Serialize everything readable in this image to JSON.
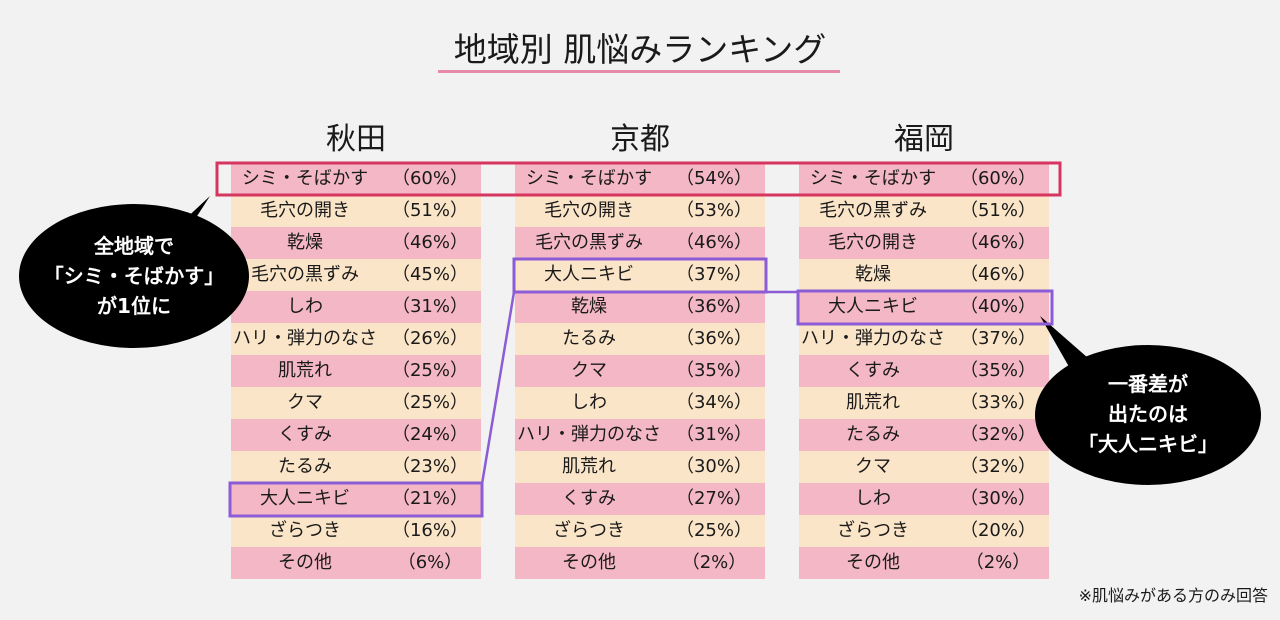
{
  "title": "地域別 肌悩みランキング",
  "note": "※肌悩みがある方のみ回答",
  "callouts": {
    "left": [
      "全地域で",
      "「シミ・そばかす」",
      "が1位に"
    ],
    "right": [
      "一番差が",
      "出たのは",
      "「大人ニキビ」"
    ]
  },
  "colors": {
    "pink_row": "#f4b7c6",
    "cream_row": "#fbe5c8",
    "red_highlight": "#d6355f",
    "purple_highlight": "#8b5cd6",
    "title_underline": "#e58aa8"
  },
  "chart_data": {
    "type": "table",
    "title": "地域別 肌悩みランキング",
    "columns": [
      {
        "region": "秋田",
        "rows": [
          {
            "label": "シミ・そばかす",
            "pct": "（60%）"
          },
          {
            "label": "毛穴の開き",
            "pct": "（51%）"
          },
          {
            "label": "乾燥",
            "pct": "（46%）"
          },
          {
            "label": "毛穴の黒ずみ",
            "pct": "（45%）"
          },
          {
            "label": "しわ",
            "pct": "（31%）"
          },
          {
            "label": "ハリ・弾力のなさ",
            "pct": "（26%）"
          },
          {
            "label": "肌荒れ",
            "pct": "（25%）"
          },
          {
            "label": "クマ",
            "pct": "（25%）"
          },
          {
            "label": "くすみ",
            "pct": "（24%）"
          },
          {
            "label": "たるみ",
            "pct": "（23%）"
          },
          {
            "label": "大人ニキビ",
            "pct": "（21%）"
          },
          {
            "label": "ざらつき",
            "pct": "（16%）"
          },
          {
            "label": "その他",
            "pct": "（6%）"
          }
        ]
      },
      {
        "region": "京都",
        "rows": [
          {
            "label": "シミ・そばかす",
            "pct": "（54%）"
          },
          {
            "label": "毛穴の開き",
            "pct": "（53%）"
          },
          {
            "label": "毛穴の黒ずみ",
            "pct": "（46%）"
          },
          {
            "label": "大人ニキビ",
            "pct": "（37%）"
          },
          {
            "label": "乾燥",
            "pct": "（36%）"
          },
          {
            "label": "たるみ",
            "pct": "（36%）"
          },
          {
            "label": "クマ",
            "pct": "（35%）"
          },
          {
            "label": "しわ",
            "pct": "（34%）"
          },
          {
            "label": "ハリ・弾力のなさ",
            "pct": "（31%）"
          },
          {
            "label": "肌荒れ",
            "pct": "（30%）"
          },
          {
            "label": "くすみ",
            "pct": "（27%）"
          },
          {
            "label": "ざらつき",
            "pct": "（25%）"
          },
          {
            "label": "その他",
            "pct": "（2%）"
          }
        ]
      },
      {
        "region": "福岡",
        "rows": [
          {
            "label": "シミ・そばかす",
            "pct": "（60%）"
          },
          {
            "label": "毛穴の黒ずみ",
            "pct": "（51%）"
          },
          {
            "label": "毛穴の開き",
            "pct": "（46%）"
          },
          {
            "label": "乾燥",
            "pct": "（46%）"
          },
          {
            "label": "大人ニキビ",
            "pct": "（40%）"
          },
          {
            "label": "ハリ・弾力のなさ",
            "pct": "（37%）"
          },
          {
            "label": "くすみ",
            "pct": "（35%）"
          },
          {
            "label": "肌荒れ",
            "pct": "（33%）"
          },
          {
            "label": "たるみ",
            "pct": "（32%）"
          },
          {
            "label": "クマ",
            "pct": "（32%）"
          },
          {
            "label": "しわ",
            "pct": "（30%）"
          },
          {
            "label": "ざらつき",
            "pct": "（20%）"
          },
          {
            "label": "その他",
            "pct": "（2%）"
          }
        ]
      }
    ],
    "highlights": {
      "all_first": "シミ・そばかす",
      "largest_difference": "大人ニキビ"
    }
  }
}
